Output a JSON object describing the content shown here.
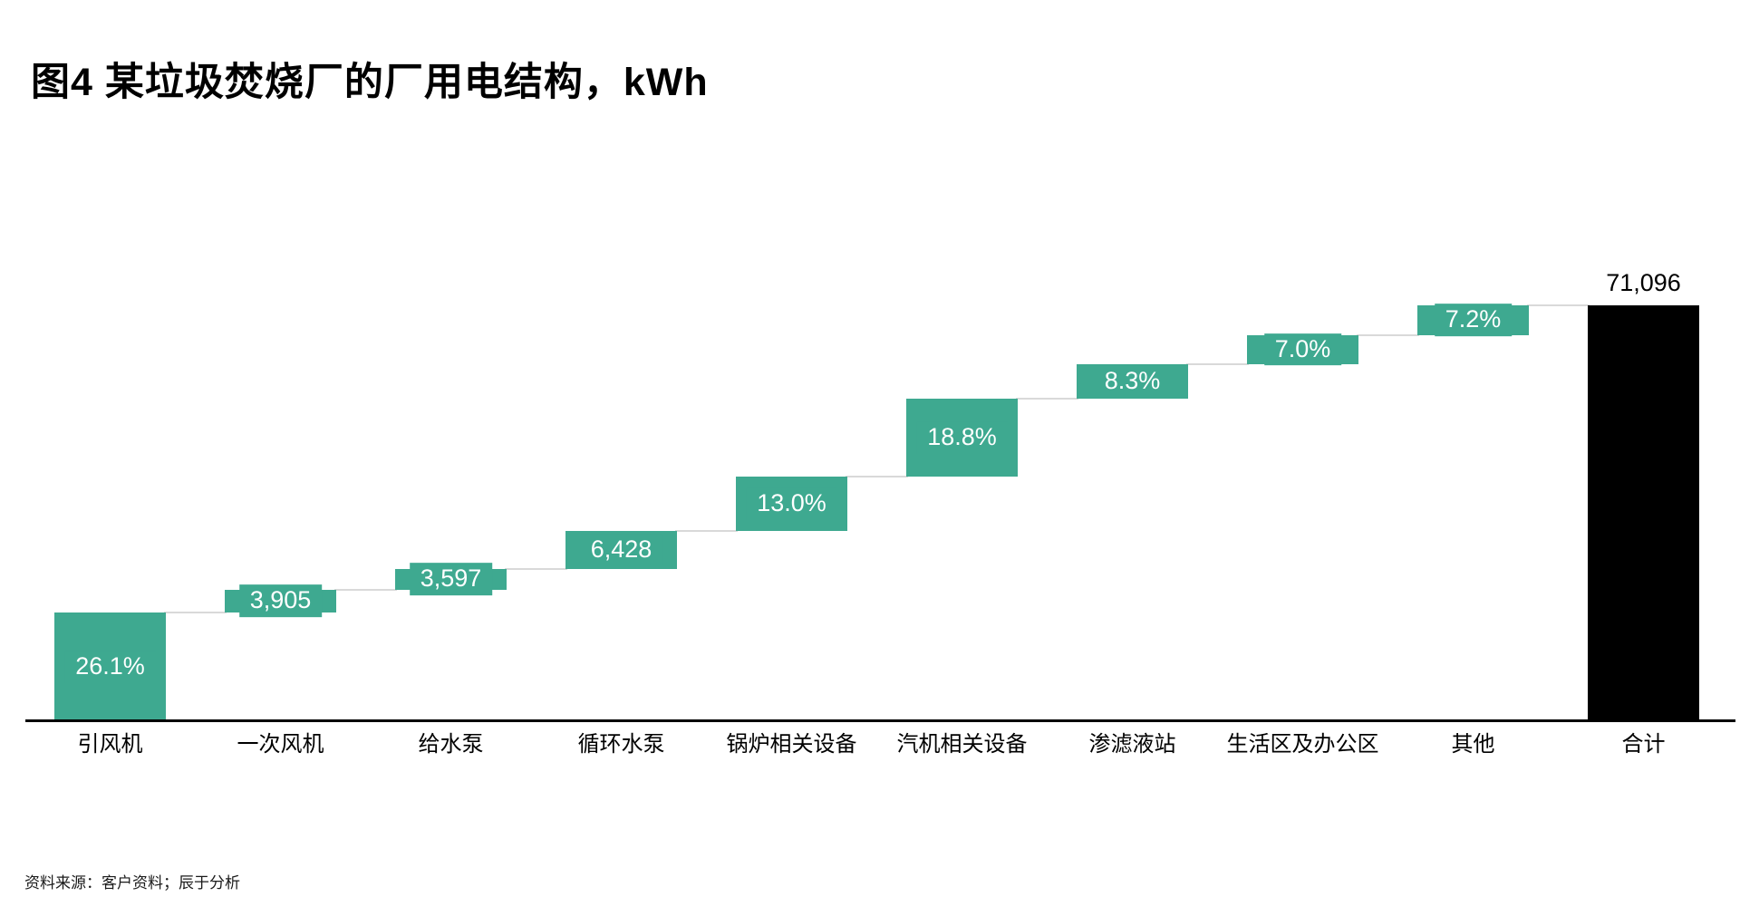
{
  "page": {
    "title": "图4 某垃圾焚烧厂的厂用电结构，kWh",
    "footer": "资料来源：客户资料；辰于分析"
  },
  "chart_data": {
    "type": "bar",
    "subtype": "waterfall",
    "title": "图4 某垃圾焚烧厂的厂用电结构，kWh",
    "unit": "kWh",
    "grid": false,
    "legend": false,
    "y_axis_visible": false,
    "total": 71096,
    "total_category": "合计",
    "total_label": "71,096",
    "categories": [
      "引风机",
      "一次风机",
      "给水泵",
      "循环水泵",
      "锅炉相关设备",
      "汽机相关设备",
      "渗滤液站",
      "生活区及办公区",
      "其他",
      "合计"
    ],
    "segments": [
      {
        "category": "引风机",
        "label": "26.1%",
        "value": 18556,
        "cumulative_end": 18556
      },
      {
        "category": "一次风机",
        "label": "3,905",
        "value": 3905,
        "cumulative_end": 22461
      },
      {
        "category": "给水泵",
        "label": "3,597",
        "value": 3597,
        "cumulative_end": 26058
      },
      {
        "category": "循环水泵",
        "label": "6,428",
        "value": 6428,
        "cumulative_end": 32486
      },
      {
        "category": "锅炉相关设备",
        "label": "13.0%",
        "value": 9242,
        "cumulative_end": 41728
      },
      {
        "category": "汽机相关设备",
        "label": "18.8%",
        "value": 13366,
        "cumulative_end": 55094
      },
      {
        "category": "渗滤液站",
        "label": "8.3%",
        "value": 5901,
        "cumulative_end": 60995
      },
      {
        "category": "生活区及办公区",
        "label": "7.0%",
        "value": 4977,
        "cumulative_end": 65972
      },
      {
        "category": "其他",
        "label": "7.2%",
        "value": 5124,
        "cumulative_end": 71096
      }
    ],
    "colors": {
      "segment": "#3EA990",
      "total": "#000000",
      "connector": "#D9D9D9",
      "bar_label_text": "#FFFFFF",
      "total_label_text": "#000000",
      "axis": "#000000"
    }
  }
}
